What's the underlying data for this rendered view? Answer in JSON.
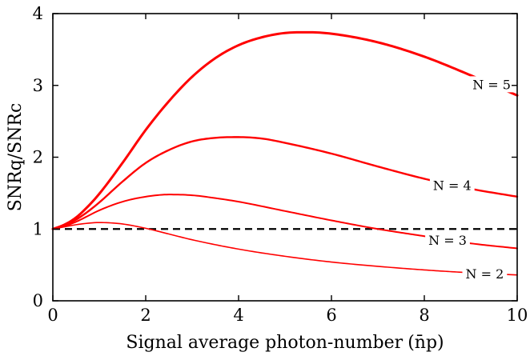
{
  "chart_data": {
    "type": "line",
    "xlabel": "Signal average photon-number",
    "xlabel_symbol": "(n̄p)",
    "ylabel": "SNRq/SNRc",
    "xlim": [
      0,
      10
    ],
    "ylim": [
      0,
      4
    ],
    "xticks": [
      0,
      2,
      4,
      6,
      8,
      10
    ],
    "yticks": [
      0,
      1,
      2,
      3,
      4
    ],
    "grid": false,
    "reference_line": {
      "y": 1,
      "style": "dashed",
      "color": "#000000"
    },
    "series": [
      {
        "name": "N = 2",
        "color": "#ff0000",
        "label_at": 9.3,
        "x": [
          0,
          0.25,
          0.5,
          0.75,
          1,
          1.25,
          1.5,
          2,
          2.5,
          3,
          4,
          5,
          6,
          7,
          8,
          9,
          10
        ],
        "y": [
          1.0,
          1.03,
          1.06,
          1.08,
          1.09,
          1.085,
          1.07,
          1.01,
          0.93,
          0.85,
          0.72,
          0.62,
          0.54,
          0.48,
          0.43,
          0.39,
          0.36
        ]
      },
      {
        "name": "N = 3",
        "color": "#ff0000",
        "label_at": 8.5,
        "x": [
          0,
          0.25,
          0.5,
          0.75,
          1,
          1.5,
          2,
          2.5,
          3,
          3.5,
          4,
          5,
          6,
          7,
          8,
          9,
          10
        ],
        "y": [
          1.0,
          1.04,
          1.1,
          1.18,
          1.26,
          1.38,
          1.45,
          1.48,
          1.47,
          1.43,
          1.38,
          1.25,
          1.12,
          1.0,
          0.9,
          0.8,
          0.73
        ]
      },
      {
        "name": "N = 4",
        "color": "#ff0000",
        "label_at": 8.6,
        "x": [
          0,
          0.25,
          0.5,
          0.75,
          1,
          1.5,
          2,
          2.5,
          3,
          3.5,
          4,
          4.5,
          5,
          6,
          7,
          8,
          9,
          10
        ],
        "y": [
          1.0,
          1.05,
          1.13,
          1.24,
          1.37,
          1.66,
          1.92,
          2.1,
          2.22,
          2.27,
          2.28,
          2.26,
          2.2,
          2.05,
          1.87,
          1.7,
          1.56,
          1.45
        ]
      },
      {
        "name": "N = 5",
        "color": "#ff0000",
        "label_at": 9.45,
        "x": [
          0,
          0.25,
          0.5,
          0.75,
          1,
          1.5,
          2,
          2.5,
          3,
          3.5,
          4,
          4.5,
          5,
          5.5,
          6,
          7,
          8,
          9,
          10
        ],
        "y": [
          1.0,
          1.06,
          1.16,
          1.31,
          1.49,
          1.92,
          2.38,
          2.78,
          3.12,
          3.38,
          3.56,
          3.67,
          3.73,
          3.74,
          3.72,
          3.6,
          3.4,
          3.14,
          2.86
        ]
      }
    ]
  }
}
